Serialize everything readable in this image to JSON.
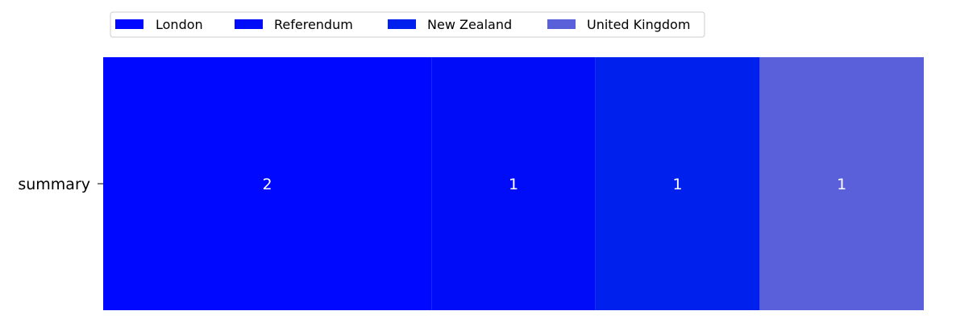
{
  "chart_data": {
    "type": "bar",
    "orientation": "horizontal",
    "stacked": true,
    "categories": [
      "summary"
    ],
    "series": [
      {
        "name": "London",
        "values": [
          2
        ],
        "color": "#0008FF"
      },
      {
        "name": "Referendum",
        "values": [
          1
        ],
        "color": "#000CF8"
      },
      {
        "name": "New Zealand",
        "values": [
          1
        ],
        "color": "#0020EE"
      },
      {
        "name": "United Kingdom",
        "values": [
          1
        ],
        "color": "#5A60DA"
      }
    ],
    "xlim": [
      0,
      5
    ],
    "legend": "top-left",
    "grid": false
  }
}
